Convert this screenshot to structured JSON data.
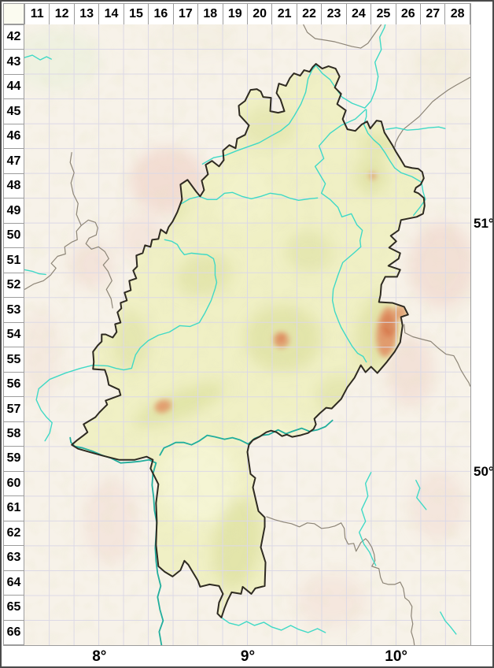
{
  "grid": {
    "column_labels": [
      "11",
      "12",
      "13",
      "14",
      "15",
      "16",
      "17",
      "18",
      "19",
      "20",
      "21",
      "22",
      "23",
      "24",
      "25",
      "26",
      "27",
      "28"
    ],
    "row_labels": [
      "42",
      "43",
      "44",
      "45",
      "46",
      "47",
      "48",
      "49",
      "50",
      "51",
      "52",
      "53",
      "54",
      "55",
      "56",
      "57",
      "58",
      "59",
      "60",
      "61",
      "62",
      "63",
      "64",
      "65",
      "66"
    ],
    "latitude_labels": [
      {
        "label": "51°",
        "grid_index": 8
      },
      {
        "label": "50°",
        "grid_index": 18
      }
    ],
    "longitude_labels": [
      {
        "label": "8°",
        "grid_index": 3
      },
      {
        "label": "9°",
        "grid_index": 9
      },
      {
        "label": "10°",
        "grid_index": 15
      }
    ]
  },
  "map": {
    "colors": {
      "outside_fill": "#f7f2e9",
      "state_fill": "#f0f0c5",
      "state_boundary": "#2e2a21",
      "neighbor_border": "#8d8577",
      "river": "#3fd9c6",
      "major_river": "#21ae9d",
      "grid_line": "#dcd9e6",
      "highland": "#d5da90",
      "peak": "#e0875c",
      "outside_pink": "#f0d5cb",
      "margin_bg": "#ffffff",
      "header_bg": "#ffffff",
      "header_text": "#000000",
      "frame_border": "#4a4a4a",
      "cell_border": "#9c9c9c"
    }
  }
}
